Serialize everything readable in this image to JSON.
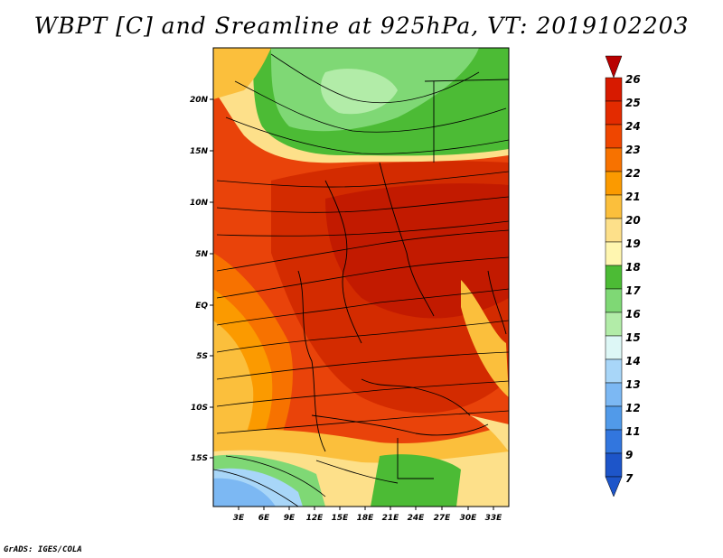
{
  "title": "WBPT [C] and Sreamline at 925hPa, VT: 2019102203",
  "credit": "GrADS: IGES/COLA",
  "map": {
    "lat_labels": [
      "20N",
      "15N",
      "10N",
      "5N",
      "EQ",
      "5S",
      "10S",
      "15S"
    ],
    "lon_labels": [
      "3E",
      "6E",
      "9E",
      "12E",
      "15E",
      "18E",
      "21E",
      "24E",
      "27E",
      "30E",
      "33E"
    ]
  },
  "colorbar": {
    "labels": [
      "26",
      "25",
      "24",
      "23",
      "22",
      "21",
      "20",
      "19",
      "18",
      "17",
      "16",
      "15",
      "14",
      "13",
      "12",
      "11",
      "9",
      "7"
    ],
    "colors": [
      "#b80000",
      "#d71a00",
      "#e32b00",
      "#ef4600",
      "#f77200",
      "#fb9a00",
      "#fbbf3c",
      "#fde08a",
      "#fff6b0",
      "#4cbb35",
      "#7fd875",
      "#b2eca8",
      "#ddf7f6",
      "#a8d6f8",
      "#7cb8f3",
      "#519ae9",
      "#3276de",
      "#1d55c9"
    ]
  }
}
